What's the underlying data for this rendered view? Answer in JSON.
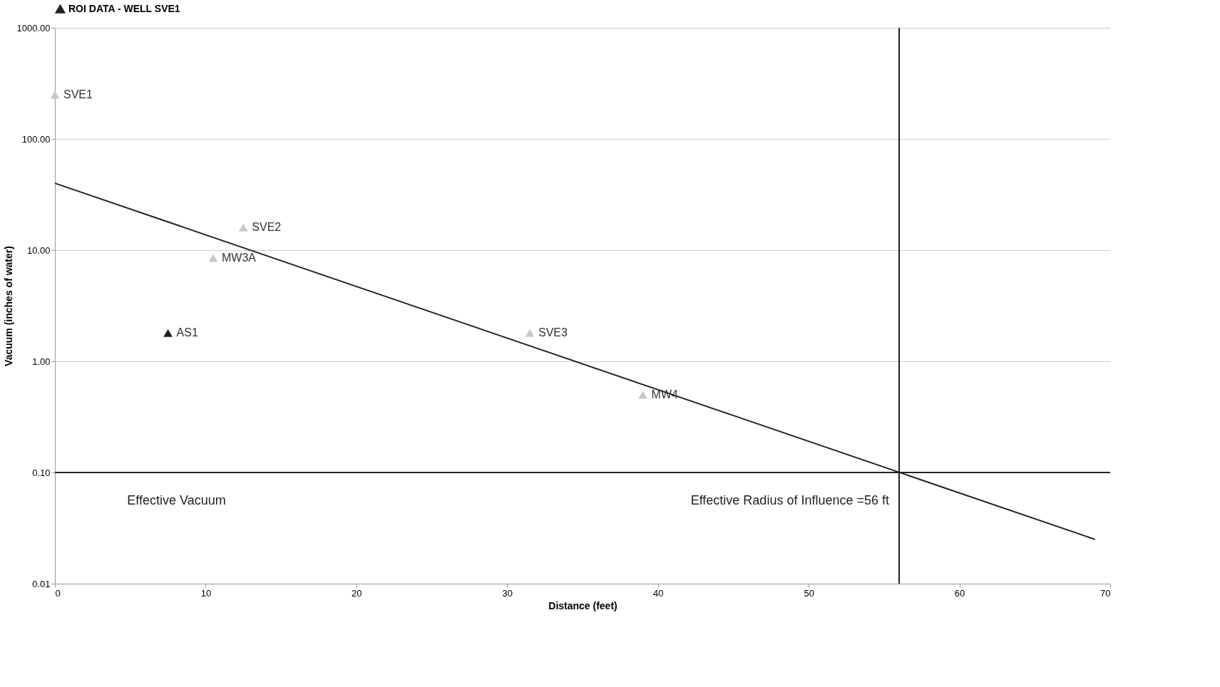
{
  "chart_data": {
    "type": "scatter",
    "xlabel": "Distance (feet)",
    "ylabel": "Vacuum (inches of water)",
    "log": "y",
    "xlim": [
      0,
      70
    ],
    "ylim": [
      0.01,
      1000
    ],
    "xticks": [
      0,
      10,
      20,
      30,
      40,
      50,
      60,
      70
    ],
    "yticks": [
      {
        "value": 0.01,
        "label": "0.01"
      },
      {
        "value": 0.1,
        "label": "0.10"
      },
      {
        "value": 1,
        "label": "1.00"
      },
      {
        "value": 10,
        "label": "10.00"
      },
      {
        "value": 100,
        "label": "100.00"
      },
      {
        "value": 1000,
        "label": "1000.00"
      }
    ],
    "grid": "y",
    "legend": "top",
    "series": [
      {
        "name": "ROI DATA - WELL SVE1",
        "marker": "triangle",
        "x": [
          0,
          12.5,
          10.5,
          7.5,
          31.5,
          39
        ],
        "values": [
          250,
          16,
          8.5,
          1.8,
          1.8,
          0.5
        ],
        "colors": [
          "#c8c8c8",
          "#c8c8c8",
          "#c8c8c8",
          "#222222",
          "#c8c8c8",
          "#c8c8c8"
        ]
      },
      {
        "type": "line",
        "color": "#222222",
        "x": [
          0,
          69
        ],
        "values": [
          40,
          0.025
        ]
      }
    ],
    "ref_lines": [
      {
        "axis": "y",
        "value": 0.1,
        "color": "#222222"
      },
      {
        "axis": "x",
        "value": 56,
        "color": "#222222"
      }
    ],
    "annotations": [
      {
        "text": "SVE1",
        "x": 0,
        "y": 250
      },
      {
        "text": "SVE2",
        "x": 12.5,
        "y": 16
      },
      {
        "text": "MW3A",
        "x": 10.5,
        "y": 8.5
      },
      {
        "text": "AS1",
        "x": 7.5,
        "y": 1.8
      },
      {
        "text": "SVE3",
        "x": 31.5,
        "y": 1.8
      },
      {
        "text": "MW4",
        "x": 39,
        "y": 0.5
      },
      {
        "text": "Effective Vacuum",
        "x": 12,
        "y": 0.1
      },
      {
        "text": "Effective Radius of Influence =56 ft",
        "x": 56,
        "y": 0.1
      }
    ]
  }
}
